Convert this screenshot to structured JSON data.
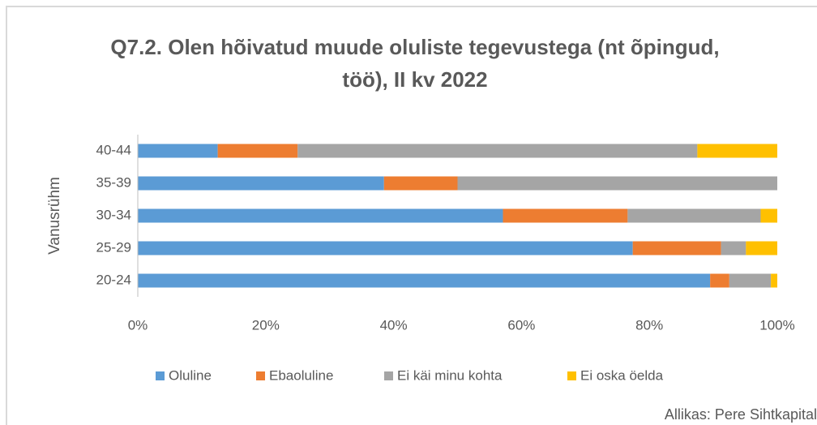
{
  "chart_data": {
    "type": "stacked_barh",
    "title": "Q7.2. Olen hõivatud muude oluliste tegevustega (nt õpingud, töö), II kv 2022",
    "ylabel": "Vanusrühm",
    "source": "Allikas: Pere Sihtkapital",
    "categories": [
      "20-24",
      "25-29",
      "30-34",
      "35-39",
      "40-44"
    ],
    "series": [
      {
        "name": "Oluline",
        "color": "#5b9bd5",
        "values": [
          89.5,
          77.4,
          57.1,
          38.5,
          12.5
        ]
      },
      {
        "name": "Ebaoluline",
        "color": "#ed7d31",
        "values": [
          3.0,
          13.8,
          19.5,
          11.5,
          12.5
        ]
      },
      {
        "name": "Ei käi minu kohta",
        "color": "#a5a5a5",
        "values": [
          6.5,
          3.9,
          20.8,
          50,
          62.5
        ]
      },
      {
        "name": "Ei oska öelda",
        "color": "#ffc000",
        "values": [
          1.0,
          4.9,
          2.6,
          0,
          12.5
        ]
      }
    ],
    "xlim": [
      0,
      100
    ],
    "xticks": [
      {
        "value": 0,
        "label": "0%"
      },
      {
        "value": 20,
        "label": "20%"
      },
      {
        "value": 40,
        "label": "40%"
      },
      {
        "value": 60,
        "label": "60%"
      },
      {
        "value": 80,
        "label": "80%"
      },
      {
        "value": 100,
        "label": "100%"
      }
    ],
    "grid": false,
    "legend": "bottom"
  }
}
